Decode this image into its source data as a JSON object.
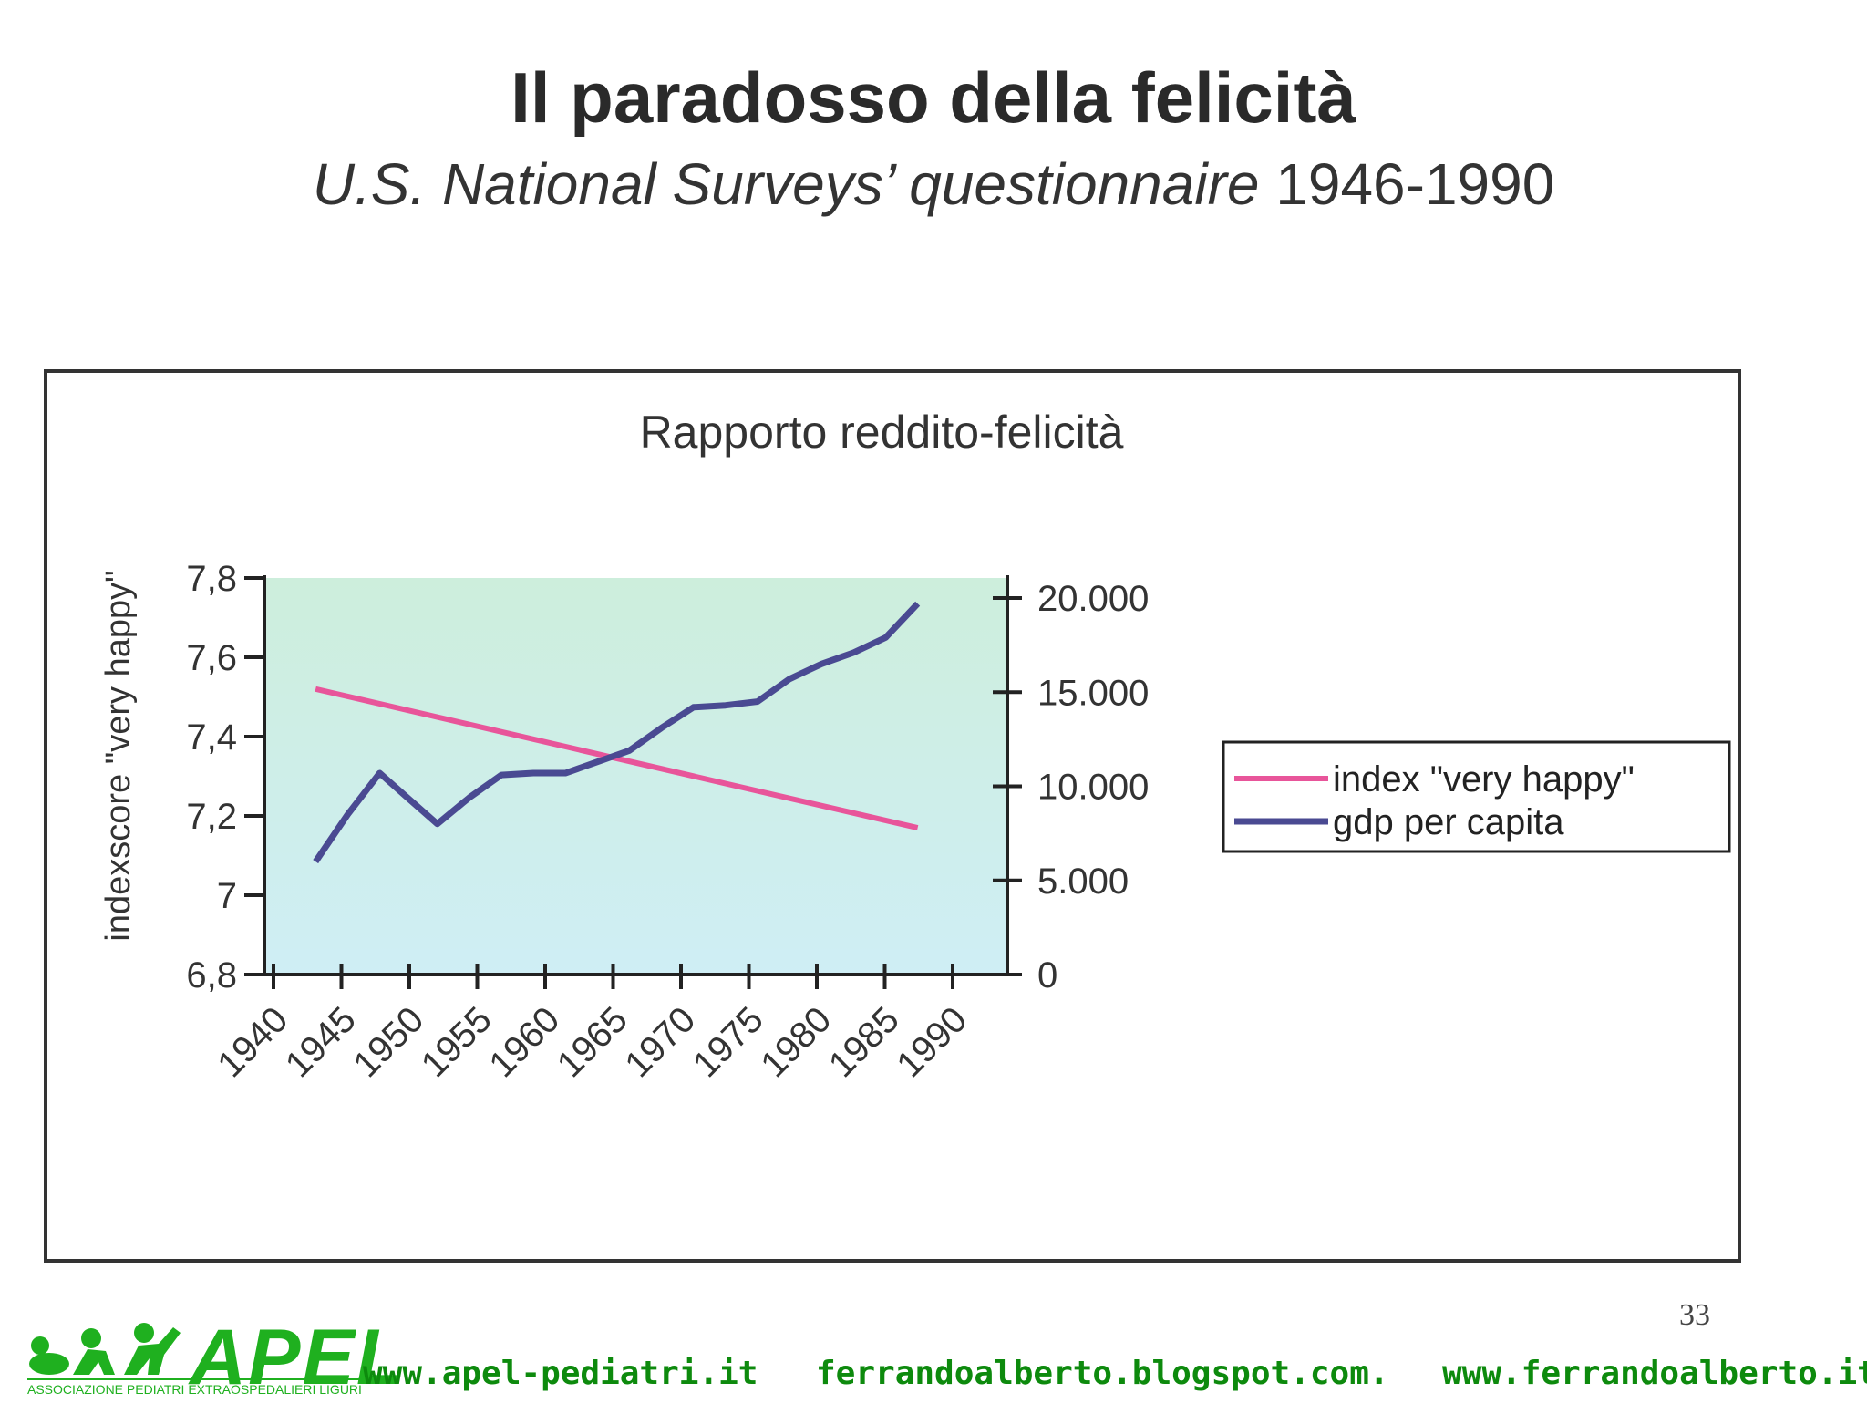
{
  "slide": {
    "title": "Il paradosso della felicità",
    "subtitle_italic": "U.S. National Surveys’ questionnaire",
    "subtitle_years": "1946-1990",
    "page_number": "33"
  },
  "chart_data": {
    "type": "line",
    "title": "Rapporto reddito-felicità",
    "ylabel": "indexscore \"very happy\"",
    "xlabel": "",
    "x_tick_labels": [
      "1940",
      "1945",
      "1950",
      "1955",
      "1960",
      "1965",
      "1970",
      "1975",
      "1980",
      "1985",
      "1990"
    ],
    "y_left": {
      "ylim": [
        6.8,
        7.8
      ],
      "ticks": [
        6.8,
        7,
        7.2,
        7.4,
        7.6,
        7.8
      ],
      "tick_labels": [
        "6,8",
        "7",
        "7,2",
        "7,4",
        "7,6",
        "7,8"
      ]
    },
    "y_right": {
      "ylim": [
        0,
        20000
      ],
      "ticks": [
        0,
        5000,
        10000,
        15000,
        20000
      ],
      "tick_labels": [
        "0",
        "5.000",
        "10.000",
        "15.000",
        "20.000"
      ]
    },
    "grid": false,
    "legend_position": "right",
    "colors": {
      "plot_top": "#cdeedc",
      "plot_bottom": "#cfeef5",
      "happy": "#e8559a",
      "gdp": "#4a4a92"
    },
    "series": [
      {
        "name": "index \"very happy\"",
        "axis": "left",
        "x": [
          1943,
          1990
        ],
        "values": [
          7.52,
          7.17
        ]
      },
      {
        "name": "gdp per capita",
        "axis": "right",
        "x": [
          1943,
          1945.5,
          1948,
          1950,
          1952.5,
          1955,
          1957.5,
          1960,
          1962.5,
          1965,
          1967.5,
          1970,
          1972.5,
          1975,
          1977.5,
          1980,
          1982.5,
          1985,
          1987.5,
          1990
        ],
        "values": [
          6000,
          8500,
          10700,
          9500,
          8000,
          9400,
          10600,
          10700,
          10700,
          11300,
          11900,
          13100,
          14200,
          14300,
          14500,
          15700,
          16500,
          17100,
          17900,
          19700
        ]
      }
    ]
  },
  "footer": {
    "logo_text": "APEL",
    "logo_subtitle": "ASSOCIAZIONE PEDIATRI EXTRAOSPEDALIERI LIGURI",
    "links": [
      "www.apel-pediatri.it",
      "ferrandoalberto.blogspot.com.",
      "www.ferrandoalberto.it"
    ]
  }
}
